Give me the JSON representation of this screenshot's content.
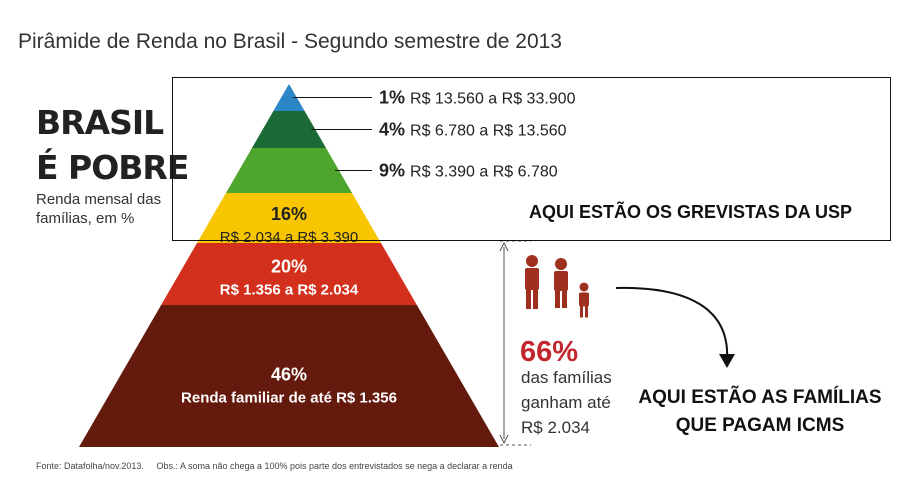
{
  "title": "Pirâmide de Renda no Brasil - Segundo semestre de 2013",
  "heading_line1": "BRASIL",
  "heading_line2": "É POBRE",
  "subtitle": "Renda mensal das famílias, em %",
  "colors": {
    "tier_1": "#2b86c5",
    "tier_4": "#1a6b35",
    "tier_9": "#4ea62f",
    "tier_16": "#f7c600",
    "tier_20": "#d2301c",
    "tier_46": "#641a0d",
    "accent_red": "#c1272d",
    "family_icon": "#a0301e"
  },
  "chart_data": {
    "type": "pyramid",
    "title": "Pirâmide de Renda no Brasil - Segundo semestre de 2013",
    "levels": [
      {
        "percent": 1,
        "percent_label": "1%",
        "range_label": "R$ 13.560 a R$ 33.900",
        "color": "#2b86c5"
      },
      {
        "percent": 4,
        "percent_label": "4%",
        "range_label": "R$ 6.780 a R$ 13.560",
        "color": "#1a6b35"
      },
      {
        "percent": 9,
        "percent_label": "9%",
        "range_label": "R$ 3.390 a R$ 6.780",
        "color": "#4ea62f"
      },
      {
        "percent": 16,
        "percent_label": "16%",
        "range_label": "R$ 2.034 a R$ 3.390",
        "color": "#f7c600"
      },
      {
        "percent": 20,
        "percent_label": "20%",
        "range_label": "R$ 1.356 a R$ 2.034",
        "color": "#d2301c"
      },
      {
        "percent": 46,
        "percent_label": "46%",
        "range_label": "Renda familiar de até R$ 1.356",
        "color": "#641a0d"
      }
    ]
  },
  "stat": {
    "value": "66%",
    "line1": "das famílias",
    "line2": "ganham até",
    "line3": "R$ 2.034"
  },
  "annotations": {
    "grevistas": "AQUI ESTÃO OS GREVISTAS DA USP",
    "icms_line1": "AQUI ESTÃO AS FAMÍLIAS",
    "icms_line2": "QUE PAGAM ICMS"
  },
  "footer": {
    "source": "Fonte: Datafolha/nov.2013.",
    "obs": "Obs.: A soma não chega a 100% pois parte dos entrevistados se nega a declarar a renda"
  }
}
